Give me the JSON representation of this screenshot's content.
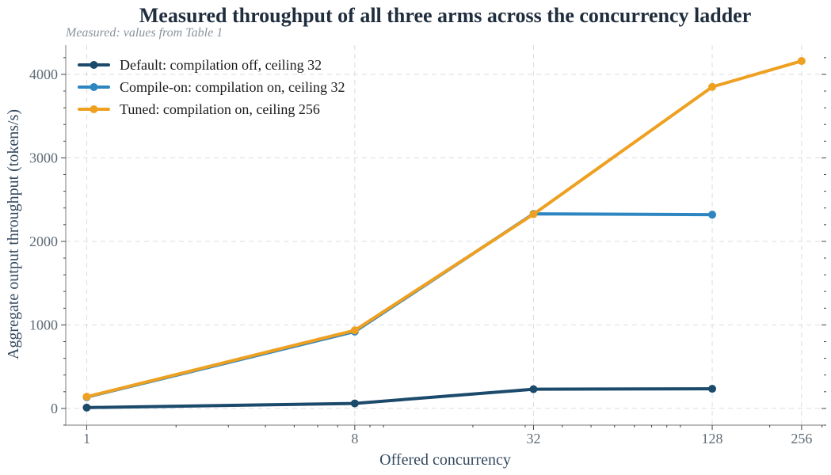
{
  "chart_data": {
    "type": "line",
    "title": "Measured throughput of all three arms across the concurrency ladder",
    "subtitle": "Measured: values from Table 1",
    "xlabel": "Offered concurrency",
    "ylabel": "Aggregate output throughput (tokens/s)",
    "x_scale": "log2",
    "x_ticks": [
      1,
      8,
      32,
      128,
      256
    ],
    "x_tick_labels": [
      "1",
      "8",
      "32",
      "128",
      "256"
    ],
    "xlim": [
      0.85,
      310
    ],
    "ylim": [
      -200,
      4350
    ],
    "y_ticks": [
      0,
      1000,
      2000,
      3000,
      4000
    ],
    "y_tick_labels": [
      "0",
      "1000",
      "2000",
      "3000",
      "4000"
    ],
    "grid": true,
    "legend_position": "top-left",
    "series": [
      {
        "name": "Default: compilation off, ceiling 32",
        "color": "#1b4a6b",
        "x": [
          1,
          8,
          32,
          128
        ],
        "values": [
          10,
          60,
          230,
          235
        ]
      },
      {
        "name": "Compile-on: compilation on, ceiling 32",
        "color": "#2e86c1",
        "x": [
          1,
          8,
          32,
          128
        ],
        "values": [
          135,
          920,
          2330,
          2320
        ]
      },
      {
        "name": "Tuned: compilation on, ceiling 256",
        "color": "#eea020",
        "x": [
          1,
          8,
          32,
          128,
          256
        ],
        "values": [
          140,
          935,
          2325,
          3850,
          4160
        ]
      }
    ]
  }
}
